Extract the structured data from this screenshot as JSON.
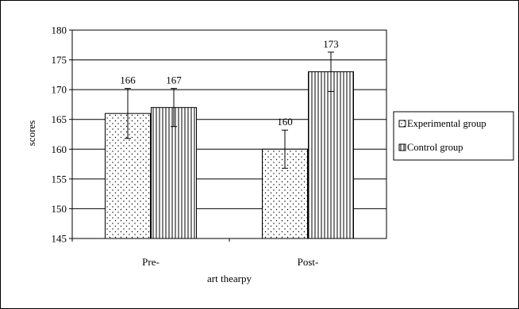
{
  "chart_data": {
    "type": "bar",
    "categories": [
      "Pre-",
      "Post-"
    ],
    "series": [
      {
        "name": "Experimental group",
        "values": [
          166,
          160
        ],
        "error": [
          4.2,
          3.2
        ],
        "pattern": "dots"
      },
      {
        "name": "Control group",
        "values": [
          167,
          173
        ],
        "error": [
          3.2,
          3.3
        ],
        "pattern": "vertical-lines"
      }
    ],
    "data_labels": [
      [
        "166",
        "160"
      ],
      [
        "167",
        "173"
      ]
    ],
    "xlabel": "art thearpy",
    "ylabel": "scores",
    "ylim": [
      145,
      180
    ],
    "yticks": [
      "145",
      "150",
      "155",
      "160",
      "165",
      "170",
      "175",
      "180"
    ],
    "grid": true,
    "legend_position": "right"
  }
}
